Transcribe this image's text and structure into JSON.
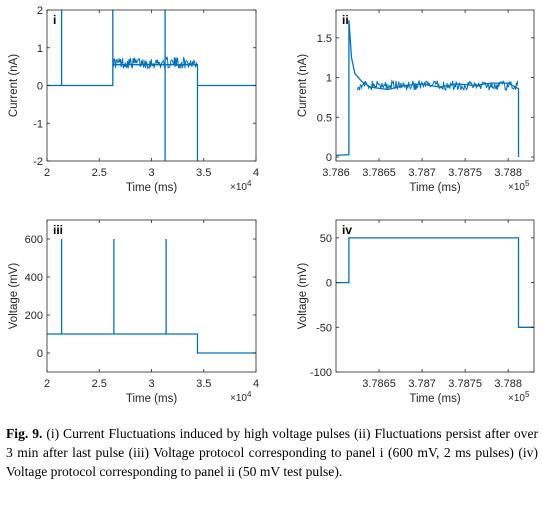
{
  "figure": {
    "caption_label": "Fig. 9.",
    "caption_text": "(i) Current Fluctuations induced by high voltage pulses (ii) Fluctuations persist after over 3 min after last pulse (iii) Voltage protocol corresponding to panel i (600 mV, 2 ms pulses) (iv) Voltage protocol corresponding to panel ii (50 mV test pulse).",
    "line_color": "#0072BD"
  },
  "chart_data": [
    {
      "panel": "i",
      "type": "line",
      "xlabel": "Time (ms)",
      "ylabel": "Current (nA)",
      "x_multiplier": "×10",
      "x_multiplier_exp": "4",
      "xlim": [
        20000,
        40000
      ],
      "ylim": [
        -2,
        2
      ],
      "xtick_values": [
        20000,
        25000,
        30000,
        35000,
        40000
      ],
      "xticks": [
        "2",
        "2.5",
        "3",
        "3.5",
        "4"
      ],
      "yticks": [
        -2,
        -1,
        0,
        1,
        2
      ],
      "series": [
        {
          "x": [
            20000,
            21400,
            21400,
            21400,
            26300,
            26300,
            26300,
            26500,
            34400,
            34400,
            34400,
            40000
          ],
          "y": [
            0,
            0,
            2,
            0,
            0,
            2,
            0.55,
            0.55,
            0.55,
            -2,
            0,
            0
          ]
        },
        {
          "x": [
            31300,
            31300
          ],
          "y": [
            -2,
            2
          ]
        }
      ],
      "noise_band": {
        "x_range": [
          26300,
          34400
        ],
        "center": 0.6,
        "amplitude": 0.15
      }
    },
    {
      "panel": "ii",
      "type": "line",
      "xlabel": "Time (ms)",
      "ylabel": "Current (nA)",
      "x_multiplier": "×10",
      "x_multiplier_exp": "5",
      "xlim": [
        378600,
        378830
      ],
      "ylim": [
        -0.05,
        1.85
      ],
      "xtick_values": [
        378600,
        378650,
        378700,
        378750,
        378800
      ],
      "xticks": [
        "3.786",
        "3.7865",
        "3.787",
        "3.7875",
        "3.788"
      ],
      "yticks": [
        0,
        0.5,
        1,
        1.5
      ],
      "series": [
        {
          "x": [
            378600,
            378615,
            378615,
            378618,
            378622,
            378630,
            378640,
            378660,
            378680,
            378700,
            378720,
            378740,
            378760,
            378780,
            378800,
            378812,
            378812
          ],
          "y": [
            0.02,
            0.03,
            1.72,
            1.25,
            1.05,
            0.95,
            0.88,
            0.85,
            0.9,
            0.92,
            0.88,
            0.92,
            0.9,
            0.93,
            0.93,
            0.86,
            0.0
          ]
        }
      ],
      "noise_band": {
        "x_range": [
          378625,
          378812
        ],
        "center": 0.9,
        "amplitude": 0.06
      }
    },
    {
      "panel": "iii",
      "type": "line",
      "xlabel": "Time (ms)",
      "ylabel": "Voltage (mV)",
      "x_multiplier": "×10",
      "x_multiplier_exp": "4",
      "xlim": [
        20000,
        40000
      ],
      "ylim": [
        -100,
        700
      ],
      "xtick_values": [
        20000,
        25000,
        30000,
        35000,
        40000
      ],
      "xticks": [
        "2",
        "2.5",
        "3",
        "3.5",
        "4"
      ],
      "yticks": [
        0,
        200,
        400,
        600
      ],
      "series": [
        {
          "x": [
            20000,
            21400,
            21400,
            21400,
            26400,
            26400,
            26400,
            31400,
            31400,
            31400,
            34400,
            34400,
            40000
          ],
          "y": [
            100,
            100,
            600,
            100,
            100,
            600,
            100,
            100,
            600,
            100,
            100,
            0,
            0
          ]
        }
      ]
    },
    {
      "panel": "iv",
      "type": "line",
      "xlabel": "Time (ms)",
      "ylabel": "Voltage (mV)",
      "x_multiplier": "×10",
      "x_multiplier_exp": "5",
      "xlim": [
        378600,
        378830
      ],
      "ylim": [
        -100,
        70
      ],
      "xtick_values": [
        378650,
        378700,
        378750,
        378800
      ],
      "xticks": [
        "3.7865",
        "3.787",
        "3.7875",
        "3.788"
      ],
      "yticks": [
        -100,
        -50,
        0,
        50
      ],
      "series": [
        {
          "x": [
            378600,
            378615,
            378615,
            378812,
            378812,
            378830
          ],
          "y": [
            0,
            0,
            50,
            50,
            -50,
            -50
          ]
        }
      ]
    }
  ]
}
